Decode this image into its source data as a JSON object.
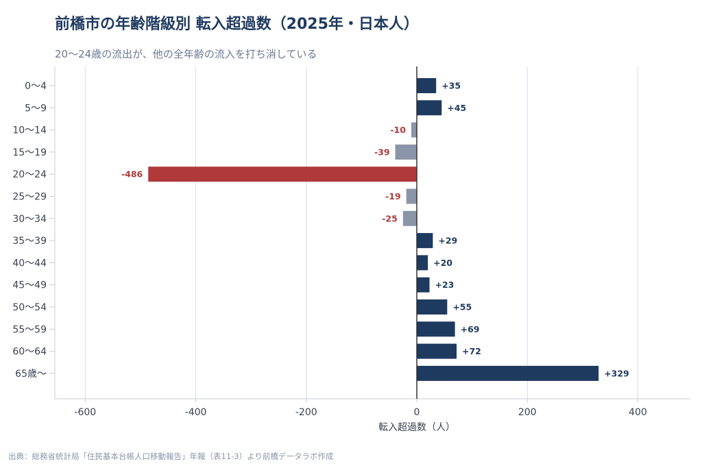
{
  "title": "前橋市の年齢階級別 転入超過数（2025年・日本人）",
  "subtitle": "20〜24歳の流出が、他の全年齢の流入を打ち消している",
  "source": "出典：総務省統計局「住民基本台帳人口移動報告」年報（表11-3）より前橋データラボ作成",
  "colors": {
    "positive": "#1f3a5f",
    "negative_small": "#8a95a8",
    "negative_highlight": "#b0393b",
    "grid": "#d9dce8",
    "zero_line": "#333333"
  },
  "chart_data": {
    "type": "bar",
    "orientation": "horizontal",
    "categories": [
      "0〜4",
      "5〜9",
      "10〜14",
      "15〜19",
      "20〜24",
      "25〜29",
      "30〜34",
      "35〜39",
      "40〜44",
      "45〜49",
      "50〜54",
      "55〜59",
      "60〜64",
      "65歳〜"
    ],
    "values": [
      35,
      45,
      -10,
      -39,
      -486,
      -19,
      -25,
      29,
      20,
      23,
      55,
      69,
      72,
      329
    ],
    "data_labels": [
      "+35",
      "+45",
      "-10",
      "-39",
      "-486",
      "-19",
      "-25",
      "+29",
      "+20",
      "+23",
      "+55",
      "+69",
      "+72",
      "+329"
    ],
    "highlight_category": "20〜24",
    "xlabel": "転入超過数（人）",
    "ylabel": "",
    "xlim": [
      -655,
      495
    ],
    "xticks": [
      -600,
      -400,
      -200,
      0,
      200,
      400
    ],
    "xtick_labels": [
      "-600",
      "-400",
      "-200",
      "0",
      "200",
      "400"
    ],
    "grid": "vertical",
    "legend": "none"
  }
}
